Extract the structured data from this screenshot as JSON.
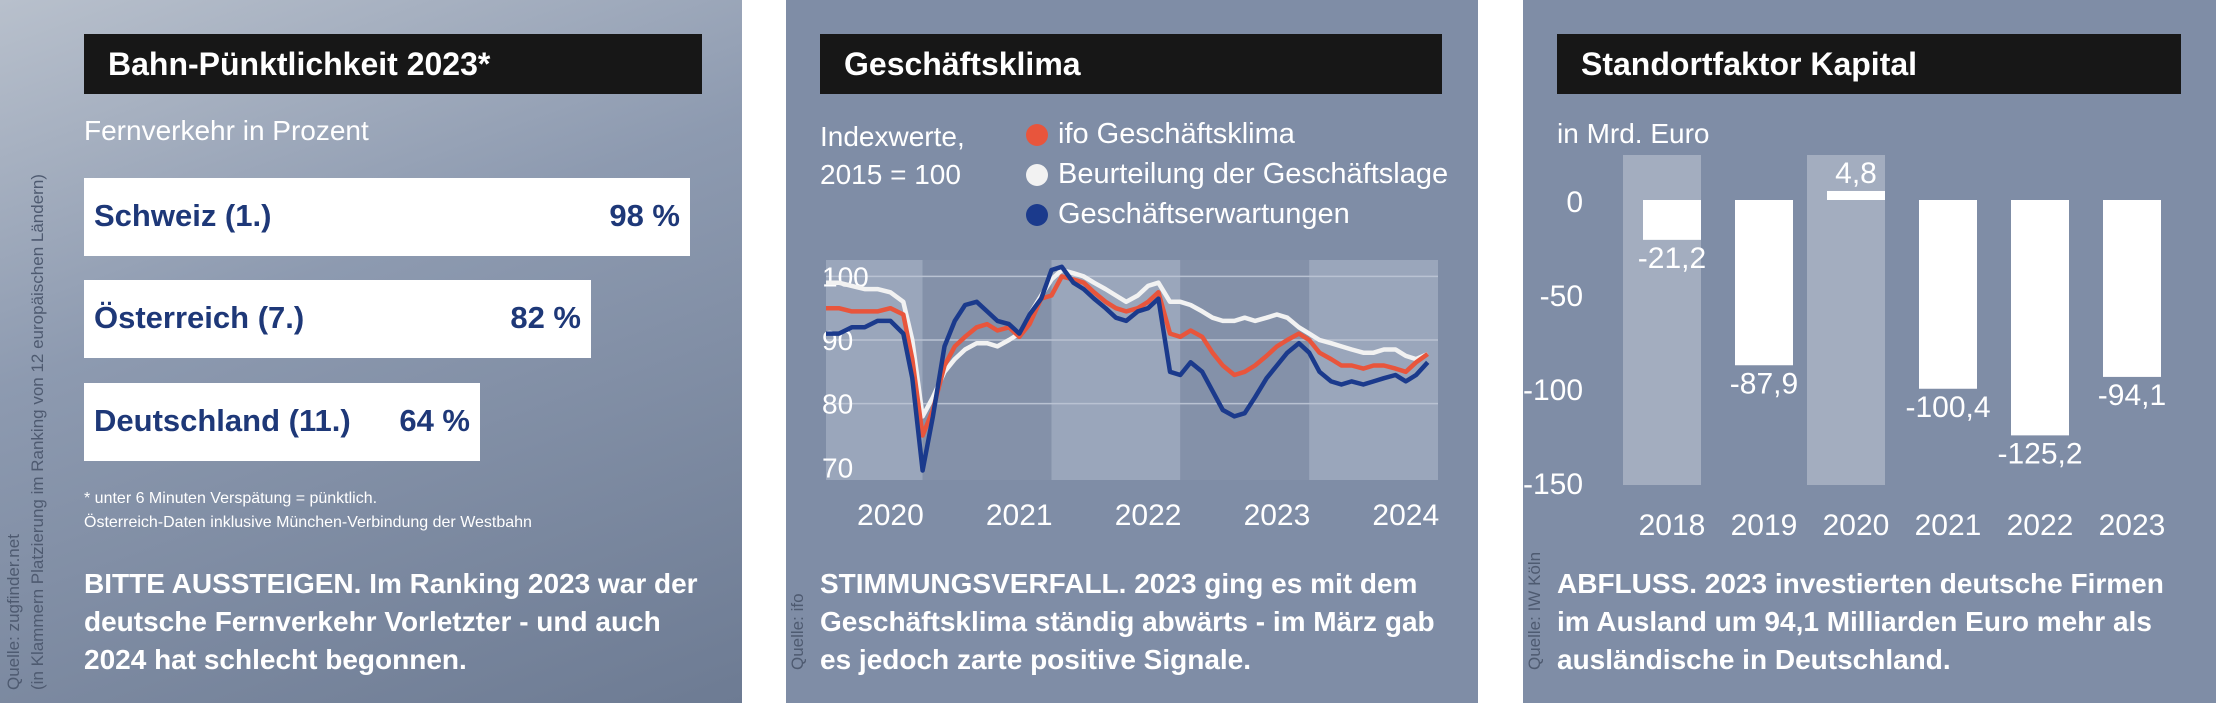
{
  "panels": {
    "puenktlichkeit": {
      "title": "Bahn-Pünktlichkeit 2023*",
      "subtitle": "Fernverkehr in Prozent",
      "source": "Quelle: zugfinder.net",
      "source_note": "(in Klammern Platzierung im Ranking von 12 europäischen Ländern)",
      "footnote1": "* unter 6 Minuten Verspätung = pünktlich.",
      "footnote2": "Österreich-Daten inklusive München-Verbindung der Westbahn",
      "caption": "BITTE AUSSTEIGEN. Im Ranking 2023 war der deutsche Fernverkehr Vorletzter - und auch 2024 hat schlecht begonnen."
    },
    "geschaeftsklima": {
      "title": "Geschäftsklima",
      "ylabel_line1": "Indexwerte,",
      "ylabel_line2": "2015 = 100",
      "source": "Quelle: ifo",
      "caption": "STIMMUNGSVERFALL. 2023 ging es mit dem Geschäftsklima ständig abwärts - im März gab es jedoch zarte positive Signale."
    },
    "kapital": {
      "title": "Standortfaktor Kapital",
      "unit": "in Mrd. Euro",
      "source": "Quelle: IW Köln",
      "caption": "ABFLUSS. 2023 investierten deutsche Firmen im Ausland um 94,1 Milliarden Euro mehr als ausländische in Deutschland."
    }
  },
  "colors": {
    "panel_bg": "#7f8da6",
    "title_bg": "#171717",
    "text_blue": "#1e3878",
    "ifo_red": "#e8553c",
    "lage_white": "#f2f2f2",
    "erwartung_blue": "#1b3a8c"
  },
  "chart_data": [
    {
      "type": "bar",
      "orientation": "horizontal",
      "categories": [
        "Schweiz (1.)",
        "Österreich (7.)",
        "Deutschland (11.)"
      ],
      "values": [
        98,
        82,
        64
      ],
      "value_labels": [
        "98 %",
        "82 %",
        "64 %"
      ],
      "xlim": [
        0,
        100
      ]
    },
    {
      "type": "line",
      "x_ticks": [
        "2020",
        "2021",
        "2022",
        "2023",
        "2024"
      ],
      "y_ticks": [
        "100",
        "90",
        "80",
        "70"
      ],
      "ylim": [
        68,
        101
      ],
      "xlim": [
        2019.5,
        2024.25
      ],
      "series": [
        {
          "name": "Beurteilung der Geschäftslage",
          "color": "#f2f2f2",
          "x": [
            2019.5,
            2019.6,
            2019.7,
            2019.8,
            2019.9,
            2020.0,
            2020.1,
            2020.17,
            2020.25,
            2020.33,
            2020.42,
            2020.5,
            2020.58,
            2020.67,
            2020.75,
            2020.83,
            2020.92,
            2021.0,
            2021.08,
            2021.17,
            2021.25,
            2021.33,
            2021.42,
            2021.5,
            2021.58,
            2021.67,
            2021.75,
            2021.83,
            2021.92,
            2022.0,
            2022.08,
            2022.17,
            2022.25,
            2022.33,
            2022.42,
            2022.5,
            2022.58,
            2022.67,
            2022.75,
            2022.83,
            2022.92,
            2023.0,
            2023.08,
            2023.17,
            2023.25,
            2023.33,
            2023.42,
            2023.5,
            2023.58,
            2023.67,
            2023.75,
            2023.83,
            2023.92,
            2024.0,
            2024.08,
            2024.17
          ],
          "y": [
            99,
            99,
            98.5,
            98,
            98,
            97.5,
            96,
            90,
            78,
            81,
            85,
            87,
            88.5,
            89.5,
            89.5,
            89,
            90,
            91,
            94,
            97,
            99.5,
            101,
            100.5,
            100,
            99,
            98,
            97,
            96,
            97,
            98.5,
            99,
            96,
            96,
            95.5,
            94.5,
            93.5,
            93,
            93,
            93.5,
            93,
            93.5,
            94,
            93.5,
            92,
            91,
            90,
            89.5,
            89,
            88.5,
            88,
            88,
            88.5,
            88.5,
            87.5,
            87,
            87.8
          ]
        },
        {
          "name": "ifo Geschäftsklima",
          "color": "#e8553c",
          "x": [
            2019.5,
            2019.6,
            2019.7,
            2019.8,
            2019.9,
            2020.0,
            2020.1,
            2020.17,
            2020.25,
            2020.33,
            2020.42,
            2020.5,
            2020.58,
            2020.67,
            2020.75,
            2020.83,
            2020.92,
            2021.0,
            2021.08,
            2021.17,
            2021.25,
            2021.33,
            2021.42,
            2021.5,
            2021.58,
            2021.67,
            2021.75,
            2021.83,
            2021.92,
            2022.0,
            2022.08,
            2022.17,
            2022.25,
            2022.33,
            2022.42,
            2022.5,
            2022.58,
            2022.67,
            2022.75,
            2022.83,
            2022.92,
            2023.0,
            2023.08,
            2023.17,
            2023.25,
            2023.33,
            2023.42,
            2023.5,
            2023.58,
            2023.67,
            2023.75,
            2023.83,
            2023.92,
            2024.0,
            2024.08,
            2024.17
          ],
          "y": [
            95,
            95,
            94.5,
            94.5,
            94.5,
            95,
            94,
            87,
            75,
            79,
            86,
            89,
            90.5,
            92,
            92.5,
            91.5,
            92,
            90.5,
            92.5,
            96.5,
            97,
            100,
            99.5,
            99,
            97.5,
            96,
            95,
            94.5,
            95,
            96,
            97.5,
            91,
            90.5,
            91.5,
            90.5,
            88,
            86,
            84.5,
            85,
            86,
            87.5,
            89,
            90,
            91,
            90,
            88,
            87,
            86,
            86,
            85.5,
            86,
            86,
            85.5,
            85,
            86.5,
            87.8
          ]
        },
        {
          "name": "Geschäftserwartungen",
          "color": "#1b3a8c",
          "x": [
            2019.5,
            2019.6,
            2019.7,
            2019.8,
            2019.9,
            2020.0,
            2020.1,
            2020.17,
            2020.25,
            2020.33,
            2020.42,
            2020.5,
            2020.58,
            2020.67,
            2020.75,
            2020.83,
            2020.92,
            2021.0,
            2021.08,
            2021.17,
            2021.25,
            2021.33,
            2021.42,
            2021.5,
            2021.58,
            2021.67,
            2021.75,
            2021.83,
            2021.92,
            2022.0,
            2022.08,
            2022.17,
            2022.25,
            2022.33,
            2022.42,
            2022.5,
            2022.58,
            2022.67,
            2022.75,
            2022.83,
            2022.92,
            2023.0,
            2023.08,
            2023.17,
            2023.25,
            2023.33,
            2023.42,
            2023.5,
            2023.58,
            2023.67,
            2023.75,
            2023.83,
            2023.92,
            2024.0,
            2024.08,
            2024.17
          ],
          "y": [
            91,
            91,
            92,
            92,
            93,
            93,
            91,
            84,
            69.5,
            78,
            89,
            93,
            95.5,
            96,
            94.5,
            93,
            92.5,
            91,
            94,
            96.5,
            101,
            101.5,
            99,
            98,
            96.5,
            95,
            93.5,
            93,
            94.5,
            95,
            96.5,
            85,
            84.5,
            86.5,
            85,
            82,
            79,
            78,
            78.5,
            81,
            84,
            86,
            88,
            89.5,
            88,
            85,
            83.5,
            83,
            83.5,
            83,
            83.5,
            84,
            84.5,
            83.5,
            84.5,
            86.5
          ]
        }
      ]
    },
    {
      "type": "bar",
      "categories": [
        "2018",
        "2019",
        "2020",
        "2021",
        "2022",
        "2023"
      ],
      "values": [
        -21.2,
        -87.9,
        4.8,
        -100.4,
        -125.2,
        -94.1
      ],
      "value_labels": [
        "-21,2",
        "-87,9",
        "4,8",
        "-100,4",
        "-125,2",
        "-94,1"
      ],
      "y_ticks": [
        "0",
        "-50",
        "-100",
        "-150"
      ],
      "ylim": [
        -150,
        10
      ]
    }
  ]
}
